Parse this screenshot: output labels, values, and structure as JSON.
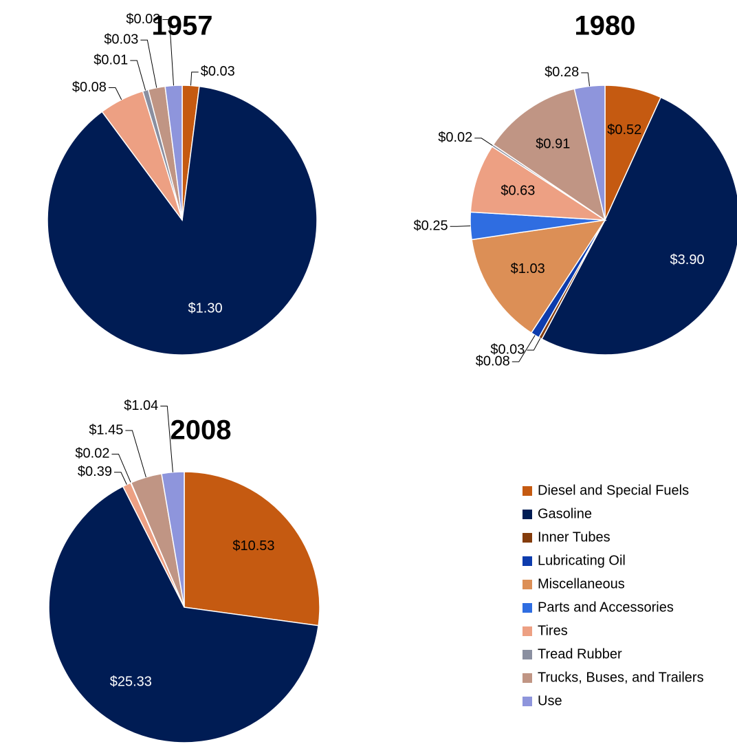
{
  "chart_data": [
    {
      "type": "pie",
      "title": "1957",
      "values": [
        0.03,
        1.3,
        null,
        null,
        null,
        null,
        0.08,
        0.01,
        0.03,
        0.03
      ],
      "value_labels": [
        "$0.03",
        "$1.30",
        null,
        null,
        null,
        null,
        "$0.08",
        "$0.01",
        "$0.03",
        "$0.03"
      ]
    },
    {
      "type": "pie",
      "title": "1980",
      "values": [
        0.52,
        3.9,
        0.03,
        0.08,
        1.03,
        0.25,
        0.63,
        0.02,
        0.91,
        0.28
      ],
      "value_labels": [
        "$0.52",
        "$3.90",
        "$0.03",
        "$0.08",
        "$1.03",
        "$0.25",
        "$0.63",
        "$0.02",
        "$0.91",
        "$0.28"
      ]
    },
    {
      "type": "pie",
      "title": "2008",
      "values": [
        10.53,
        25.33,
        null,
        null,
        null,
        null,
        0.39,
        0.02,
        1.45,
        1.04
      ],
      "value_labels": [
        "$10.53",
        "$25.33",
        null,
        null,
        null,
        null,
        "$0.39",
        "$0.02",
        "$1.45",
        "$1.04"
      ]
    }
  ],
  "legend": {
    "categories": [
      "Diesel and Special Fuels",
      "Gasoline",
      "Inner Tubes",
      "Lubricating Oil",
      "Miscellaneous",
      "Parts and Accessories",
      "Tires",
      "Tread Rubber",
      "Trucks, Buses, and Trailers",
      "Use"
    ],
    "colors": [
      "#c55a11",
      "#001c54",
      "#843c0c",
      "#0d3cad",
      "#dc8f56",
      "#2f6de1",
      "#eda083",
      "#8a8fa0",
      "#c09584",
      "#8e95dc"
    ]
  }
}
